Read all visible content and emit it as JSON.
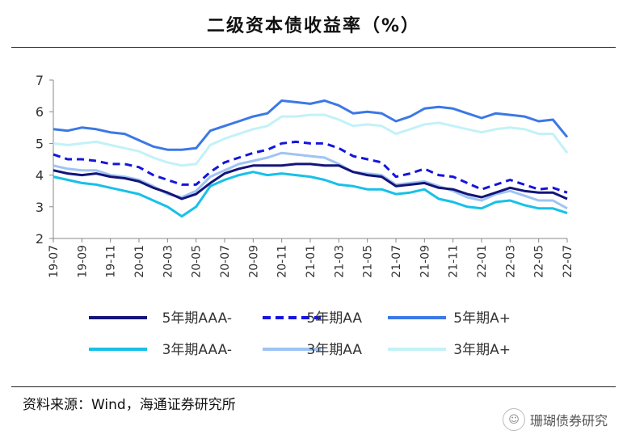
{
  "title": "二级资本债收益率（%）",
  "source": "资料来源：Wind，海通证券研究所",
  "watermark": "珊瑚债券研究",
  "chart_data": {
    "type": "line",
    "ylim": [
      2,
      7
    ],
    "yticks": [
      2,
      3,
      4,
      5,
      6,
      7
    ],
    "x_tick_labels": [
      "19-07",
      "19-09",
      "19-11",
      "20-01",
      "20-03",
      "20-05",
      "20-07",
      "20-09",
      "20-11",
      "21-01",
      "21-03",
      "21-05",
      "21-07",
      "21-09",
      "21-11",
      "22-01",
      "22-03",
      "22-05",
      "22-07"
    ],
    "x": [
      "19-07",
      "19-08",
      "19-09",
      "19-10",
      "19-11",
      "19-12",
      "20-01",
      "20-02",
      "20-03",
      "20-04",
      "20-05",
      "20-06",
      "20-07",
      "20-08",
      "20-09",
      "20-10",
      "20-11",
      "20-12",
      "21-01",
      "21-02",
      "21-03",
      "21-04",
      "21-05",
      "21-06",
      "21-07",
      "21-08",
      "21-09",
      "21-10",
      "21-11",
      "21-12",
      "22-01",
      "22-02",
      "22-03",
      "22-04",
      "22-05",
      "22-06",
      "22-07"
    ],
    "legend_position": "bottom",
    "series": [
      {
        "name": "5年期AAA-",
        "color": "#14147a",
        "dash": "solid",
        "values": [
          4.15,
          4.05,
          4.0,
          4.05,
          3.95,
          3.9,
          3.8,
          3.6,
          3.45,
          3.25,
          3.4,
          3.75,
          4.05,
          4.2,
          4.3,
          4.3,
          4.3,
          4.35,
          4.35,
          4.3,
          4.3,
          4.1,
          4.0,
          3.95,
          3.65,
          3.7,
          3.75,
          3.6,
          3.55,
          3.4,
          3.3,
          3.45,
          3.6,
          3.5,
          3.45,
          3.45,
          3.25
        ]
      },
      {
        "name": "5年期AA",
        "color": "#1515dd",
        "dash": "dashed",
        "values": [
          4.65,
          4.5,
          4.5,
          4.45,
          4.35,
          4.35,
          4.25,
          4.0,
          3.85,
          3.7,
          3.7,
          4.1,
          4.4,
          4.55,
          4.7,
          4.8,
          5.0,
          5.05,
          5.0,
          5.0,
          4.85,
          4.6,
          4.5,
          4.4,
          3.95,
          4.05,
          4.2,
          4.0,
          3.95,
          3.75,
          3.55,
          3.7,
          3.85,
          3.7,
          3.55,
          3.6,
          3.45
        ]
      },
      {
        "name": "5年期A+",
        "color": "#3c78e6",
        "dash": "solid",
        "values": [
          5.45,
          5.4,
          5.5,
          5.45,
          5.35,
          5.3,
          5.1,
          4.9,
          4.8,
          4.8,
          4.85,
          5.4,
          5.55,
          5.7,
          5.85,
          5.95,
          6.35,
          6.3,
          6.25,
          6.35,
          6.2,
          5.95,
          6.0,
          5.95,
          5.7,
          5.85,
          6.1,
          6.15,
          6.1,
          5.95,
          5.8,
          5.95,
          5.9,
          5.85,
          5.7,
          5.75,
          5.2
        ]
      },
      {
        "name": "3年期AAA-",
        "color": "#18c0e8",
        "dash": "solid",
        "values": [
          3.95,
          3.85,
          3.75,
          3.7,
          3.6,
          3.5,
          3.4,
          3.2,
          3.0,
          2.7,
          3.0,
          3.65,
          3.85,
          4.0,
          4.1,
          4.0,
          4.05,
          4.0,
          3.95,
          3.85,
          3.7,
          3.65,
          3.55,
          3.55,
          3.4,
          3.45,
          3.55,
          3.25,
          3.15,
          3.0,
          2.95,
          3.15,
          3.2,
          3.05,
          2.95,
          2.95,
          2.8
        ]
      },
      {
        "name": "3年期AA",
        "color": "#9ec4f4",
        "dash": "solid",
        "values": [
          4.3,
          4.2,
          4.15,
          4.15,
          4.0,
          3.95,
          3.85,
          3.65,
          3.4,
          3.3,
          3.5,
          3.95,
          4.15,
          4.35,
          4.45,
          4.55,
          4.7,
          4.65,
          4.6,
          4.55,
          4.35,
          4.1,
          4.05,
          4.0,
          3.7,
          3.75,
          3.8,
          3.65,
          3.5,
          3.3,
          3.2,
          3.4,
          3.5,
          3.35,
          3.2,
          3.2,
          2.95
        ]
      },
      {
        "name": "3年期A+",
        "color": "#c2f2f7",
        "dash": "solid",
        "values": [
          5.0,
          4.95,
          5.0,
          5.05,
          4.95,
          4.85,
          4.75,
          4.55,
          4.4,
          4.3,
          4.35,
          4.95,
          5.15,
          5.3,
          5.45,
          5.55,
          5.85,
          5.85,
          5.9,
          5.9,
          5.75,
          5.55,
          5.6,
          5.55,
          5.3,
          5.45,
          5.6,
          5.65,
          5.55,
          5.45,
          5.35,
          5.45,
          5.5,
          5.45,
          5.3,
          5.3,
          4.7
        ]
      }
    ]
  }
}
